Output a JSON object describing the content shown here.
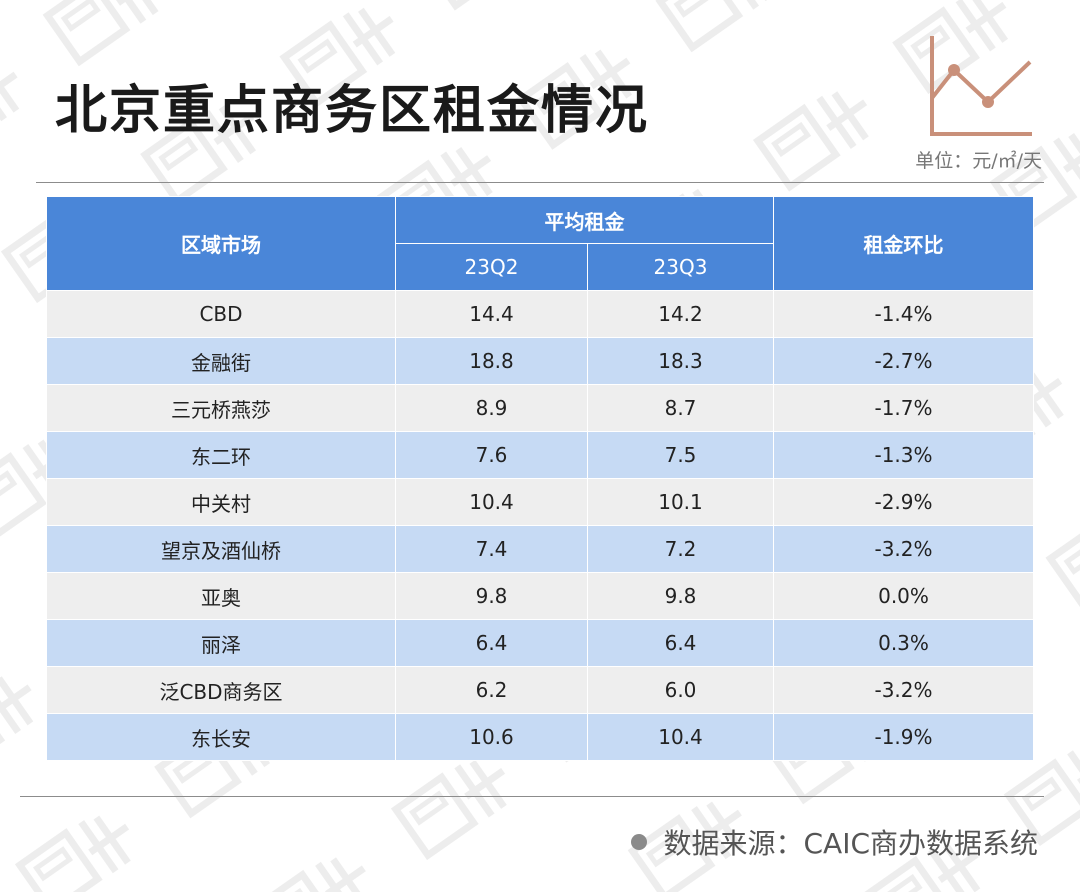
{
  "title": "北京重点商务区租金情况",
  "unit": "单位：元/㎡/天",
  "source": "数据来源：CAIC商办数据系统",
  "colors": {
    "header_blue": "#4a86d8",
    "row_blue": "#c6daf4",
    "row_gray": "#eeeeee",
    "icon_brown": "#c9907a"
  },
  "icon": "line-chart-icon",
  "table": {
    "col_region": "区域市场",
    "col_avg_rent": "平均租金",
    "col_q2": "23Q2",
    "col_q3": "23Q3",
    "col_change": "租金环比"
  },
  "chart_data": {
    "type": "table",
    "title": "北京重点商务区租金情况",
    "unit": "单位：元/㎡/天",
    "columns": [
      "区域市场",
      "23Q2",
      "23Q3",
      "租金环比"
    ],
    "rows": [
      {
        "region": "CBD",
        "q2": "14.4",
        "q3": "14.2",
        "change": "-1.4%"
      },
      {
        "region": "金融街",
        "q2": "18.8",
        "q3": "18.3",
        "change": "-2.7%"
      },
      {
        "region": "三元桥燕莎",
        "q2": "8.9",
        "q3": "8.7",
        "change": "-1.7%"
      },
      {
        "region": "东二环",
        "q2": "7.6",
        "q3": "7.5",
        "change": "-1.3%"
      },
      {
        "region": "中关村",
        "q2": "10.4",
        "q3": "10.1",
        "change": "-2.9%"
      },
      {
        "region": "望京及酒仙桥",
        "q2": "7.4",
        "q3": "7.2",
        "change": "-3.2%"
      },
      {
        "region": "亚奥",
        "q2": "9.8",
        "q3": "9.8",
        "change": "0.0%"
      },
      {
        "region": "丽泽",
        "q2": "6.4",
        "q3": "6.4",
        "change": "0.3%"
      },
      {
        "region": "泛CBD商务区",
        "q2": "6.2",
        "q3": "6.0",
        "change": "-3.2%"
      },
      {
        "region": "东长安",
        "q2": "10.6",
        "q3": "10.4",
        "change": "-1.9%"
      }
    ]
  }
}
